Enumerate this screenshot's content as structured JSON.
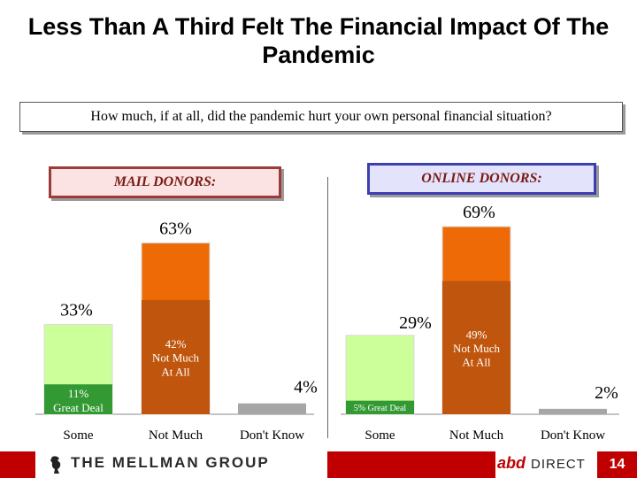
{
  "title": "Less Than A Third Felt The Financial Impact Of The Pandemic",
  "question": "How much, if at all, did the pandemic hurt your own personal financial situation?",
  "footer": {
    "brand": "THE MELLMAN GROUP",
    "partner_mark": "abd",
    "partner_word": "DIRECT",
    "page_number": "14"
  },
  "colors": {
    "some_total": "#ccff99",
    "great_deal": "#339933",
    "not_much_total": "#ee6a06",
    "not_much_at_all": "#c0560d",
    "dont_know": "#a6a6a6"
  },
  "chart_data": [
    {
      "type": "bar",
      "panel": "MAIL DONORS:",
      "ylim": [
        0,
        80
      ],
      "bars": [
        {
          "category": "Some",
          "total": 33,
          "total_label": "33%",
          "segment": 11,
          "segment_label": "11%\nGreat Deal"
        },
        {
          "category": "Not Much",
          "total": 63,
          "total_label": "63%",
          "segment": 42,
          "segment_label": "42%\nNot Much\nAt All"
        },
        {
          "category": "Don't Know",
          "total": 4,
          "total_label": "4%"
        }
      ]
    },
    {
      "type": "bar",
      "panel": "ONLINE DONORS:",
      "ylim": [
        0,
        80
      ],
      "bars": [
        {
          "category": "Some",
          "total": 29,
          "total_label": "29%",
          "segment": 5,
          "segment_label": "5%  Great Deal"
        },
        {
          "category": "Not Much",
          "total": 69,
          "total_label": "69%",
          "segment": 49,
          "segment_label": "49%\nNot Much\nAt All"
        },
        {
          "category": "Don't Know",
          "total": 2,
          "total_label": "2%"
        }
      ]
    }
  ]
}
